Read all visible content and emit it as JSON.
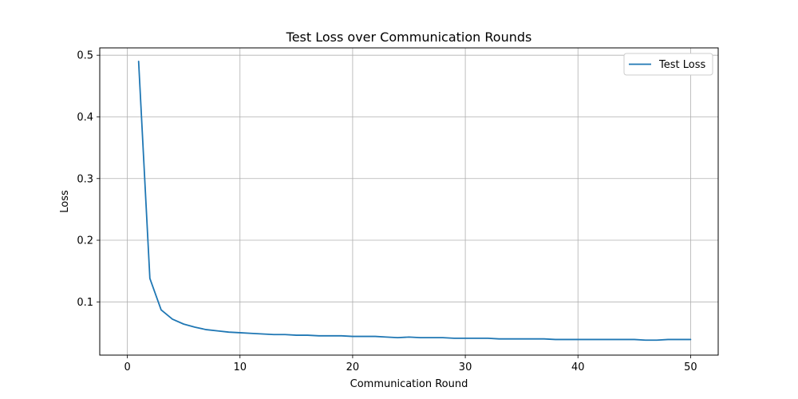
{
  "chart_data": {
    "type": "line",
    "title": "Test Loss over Communication Rounds",
    "xlabel": "Communication Round",
    "ylabel": "Loss",
    "xlim": [
      -2.45,
      52.45
    ],
    "ylim": [
      0.0137,
      0.5119
    ],
    "xticks": [
      0,
      10,
      20,
      30,
      40,
      50
    ],
    "yticks": [
      0.1,
      0.2,
      0.3,
      0.4,
      0.5
    ],
    "ytick_labels": [
      "0.1",
      "0.2",
      "0.3",
      "0.4",
      "0.5"
    ],
    "grid": true,
    "legend_position": "top-right",
    "series": [
      {
        "name": "Test Loss",
        "color": "#1f77b4",
        "x": [
          1,
          2,
          3,
          4,
          5,
          6,
          7,
          8,
          9,
          10,
          11,
          12,
          13,
          14,
          15,
          16,
          17,
          18,
          19,
          20,
          21,
          22,
          23,
          24,
          25,
          26,
          27,
          28,
          29,
          30,
          31,
          32,
          33,
          34,
          35,
          36,
          37,
          38,
          39,
          40,
          41,
          42,
          43,
          44,
          45,
          46,
          47,
          48,
          49,
          50
        ],
        "values": [
          0.49,
          0.138,
          0.087,
          0.072,
          0.064,
          0.059,
          0.055,
          0.053,
          0.051,
          0.05,
          0.049,
          0.048,
          0.047,
          0.047,
          0.046,
          0.046,
          0.045,
          0.045,
          0.045,
          0.044,
          0.044,
          0.044,
          0.043,
          0.042,
          0.043,
          0.042,
          0.042,
          0.042,
          0.041,
          0.041,
          0.041,
          0.041,
          0.04,
          0.04,
          0.04,
          0.04,
          0.04,
          0.039,
          0.039,
          0.039,
          0.039,
          0.039,
          0.039,
          0.039,
          0.039,
          0.038,
          0.038,
          0.039,
          0.039,
          0.039
        ]
      }
    ]
  }
}
